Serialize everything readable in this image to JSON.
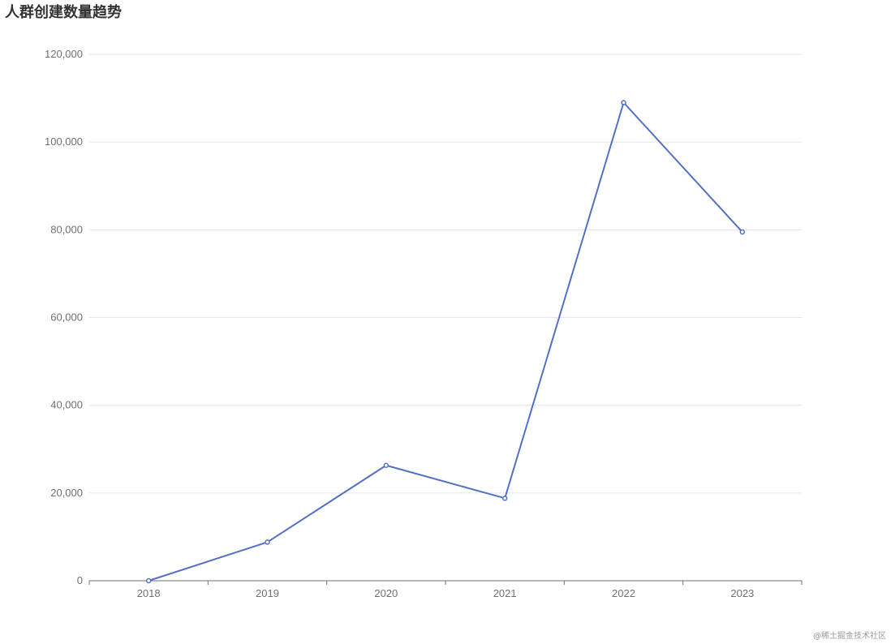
{
  "watermark": "@稀土掘金技术社区",
  "colors": {
    "line": "#5470c6",
    "grid": "#e0e6f1",
    "axis": "#6e7079",
    "text": "#6e7079",
    "title": "#333333"
  },
  "chart_data": {
    "type": "line",
    "title": "人群创建数量趋势",
    "xlabel": "",
    "ylabel": "",
    "categories": [
      "2018",
      "2019",
      "2020",
      "2021",
      "2022",
      "2023"
    ],
    "series": [
      {
        "values": [
          0,
          8800,
          26300,
          18800,
          109000,
          79500
        ]
      }
    ],
    "ylim": [
      0,
      120000
    ],
    "yticks": [
      0,
      20000,
      40000,
      60000,
      80000,
      100000,
      120000
    ],
    "ytick_labels": [
      "0",
      "20,000",
      "40,000",
      "60,000",
      "80,000",
      "100,000",
      "120,000"
    ],
    "grid": true,
    "legend": "none"
  }
}
